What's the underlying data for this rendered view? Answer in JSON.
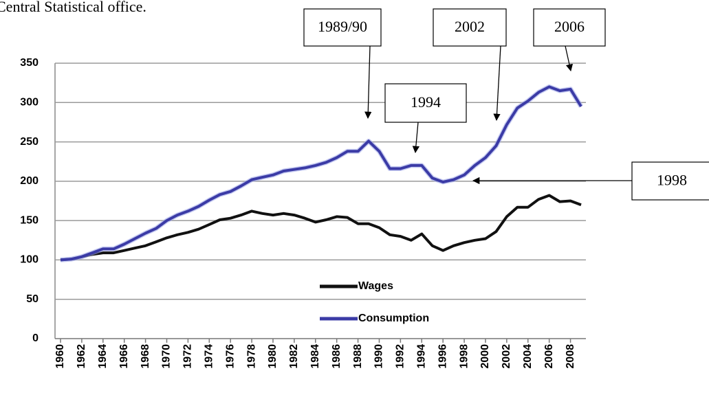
{
  "note": "Central Statistical office.",
  "chart_data": {
    "type": "line",
    "x": [
      1960,
      1961,
      1962,
      1963,
      1964,
      1965,
      1966,
      1967,
      1968,
      1969,
      1970,
      1971,
      1972,
      1973,
      1974,
      1975,
      1976,
      1977,
      1978,
      1979,
      1980,
      1981,
      1982,
      1983,
      1984,
      1985,
      1986,
      1987,
      1988,
      1989,
      1990,
      1991,
      1992,
      1993,
      1994,
      1995,
      1996,
      1997,
      1998,
      1999,
      2000,
      2001,
      2002,
      2003,
      2004,
      2005,
      2006,
      2007,
      2008,
      2009
    ],
    "xlim": [
      1960,
      2009
    ],
    "xticks": [
      1960,
      1962,
      1964,
      1966,
      1968,
      1970,
      1972,
      1974,
      1976,
      1978,
      1980,
      1982,
      1984,
      1986,
      1988,
      1990,
      1992,
      1994,
      1996,
      1998,
      2000,
      2002,
      2004,
      2006,
      2008
    ],
    "ylim": [
      0,
      350
    ],
    "yticks": [
      0,
      50,
      100,
      150,
      200,
      250,
      300,
      350
    ],
    "grid": true,
    "series": [
      {
        "name": "Wages",
        "color": "#111111",
        "values": [
          100,
          101,
          104,
          107,
          109,
          109,
          112,
          115,
          118,
          123,
          128,
          132,
          135,
          139,
          145,
          151,
          153,
          157,
          162,
          159,
          157,
          159,
          157,
          153,
          148,
          151,
          155,
          154,
          146,
          146,
          141,
          132,
          130,
          125,
          133,
          118,
          112,
          118,
          122,
          125,
          127,
          136,
          155,
          167,
          167,
          177,
          182,
          174,
          175,
          170
        ]
      },
      {
        "name": "Consumption",
        "color": "#3b3ba6",
        "values": [
          100,
          101,
          104,
          109,
          114,
          114,
          120,
          127,
          134,
          140,
          150,
          157,
          162,
          168,
          176,
          183,
          187,
          194,
          202,
          205,
          208,
          213,
          215,
          217,
          220,
          224,
          230,
          238,
          238,
          251,
          238,
          216,
          216,
          220,
          220,
          204,
          199,
          202,
          208,
          220,
          230,
          245,
          272,
          293,
          302,
          313,
          320,
          315,
          317,
          295
        ]
      }
    ],
    "annotations": [
      {
        "text": "1989/90",
        "bold": false
      },
      {
        "text": "2002",
        "bold": true
      },
      {
        "text": "2006",
        "bold": true
      },
      {
        "text": "1994",
        "bold": false
      },
      {
        "text": "1998",
        "bold": false
      }
    ]
  }
}
